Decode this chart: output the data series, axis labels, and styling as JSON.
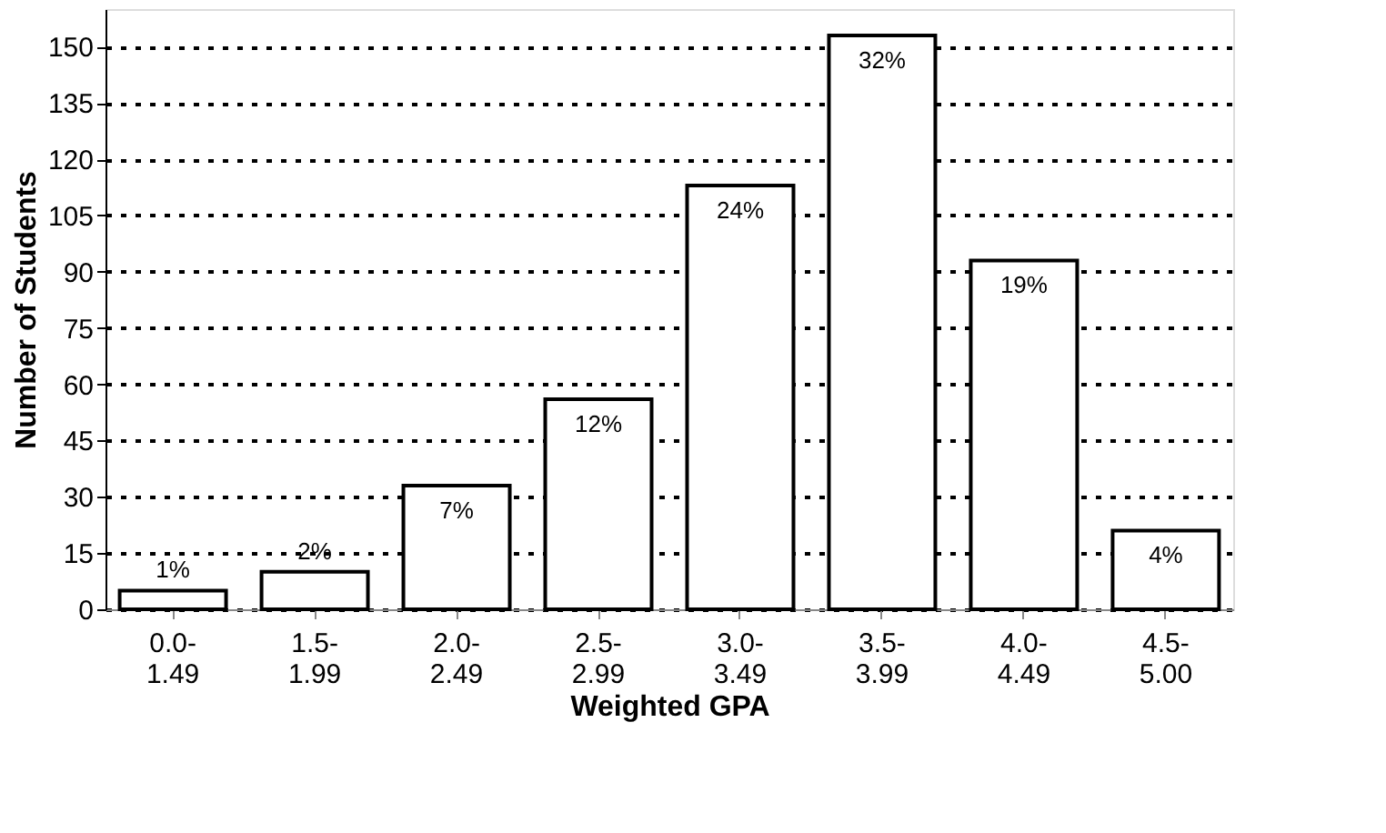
{
  "chart_data": {
    "type": "bar",
    "xlabel": "Weighted GPA",
    "ylabel": "Number of Students",
    "categories": [
      "0.0-\n1.49",
      "1.5-\n1.99",
      "2.0-\n2.49",
      "2.5-\n2.99",
      "3.0-\n3.49",
      "3.5-\n3.99",
      "4.0-\n4.49",
      "4.5-\n5.00"
    ],
    "values": [
      5,
      10,
      33,
      56,
      113,
      153,
      93,
      21
    ],
    "annotations": [
      {
        "text": "1%",
        "x": "0.0-\n1.49",
        "y": 5
      },
      {
        "text": "2%",
        "x": "1.5-\n1.99",
        "y": 10
      },
      {
        "text": "7%",
        "x": "2.0-\n2.49",
        "y": 33
      },
      {
        "text": "12%",
        "x": "2.5-\n2.99",
        "y": 56
      },
      {
        "text": "24%",
        "x": "3.0-\n3.49",
        "y": 113
      },
      {
        "text": "32%",
        "x": "3.5-\n3.99",
        "y": 153
      },
      {
        "text": "19%",
        "x": "4.0-\n4.49",
        "y": 93
      },
      {
        "text": "4%",
        "x": "4.5-\n5.00",
        "y": 21
      }
    ],
    "color": "#ffffff",
    "ylim": [
      0,
      160
    ],
    "yticks": [
      0,
      15,
      30,
      45,
      60,
      75,
      90,
      105,
      120,
      135,
      150
    ],
    "grid": "y"
  }
}
